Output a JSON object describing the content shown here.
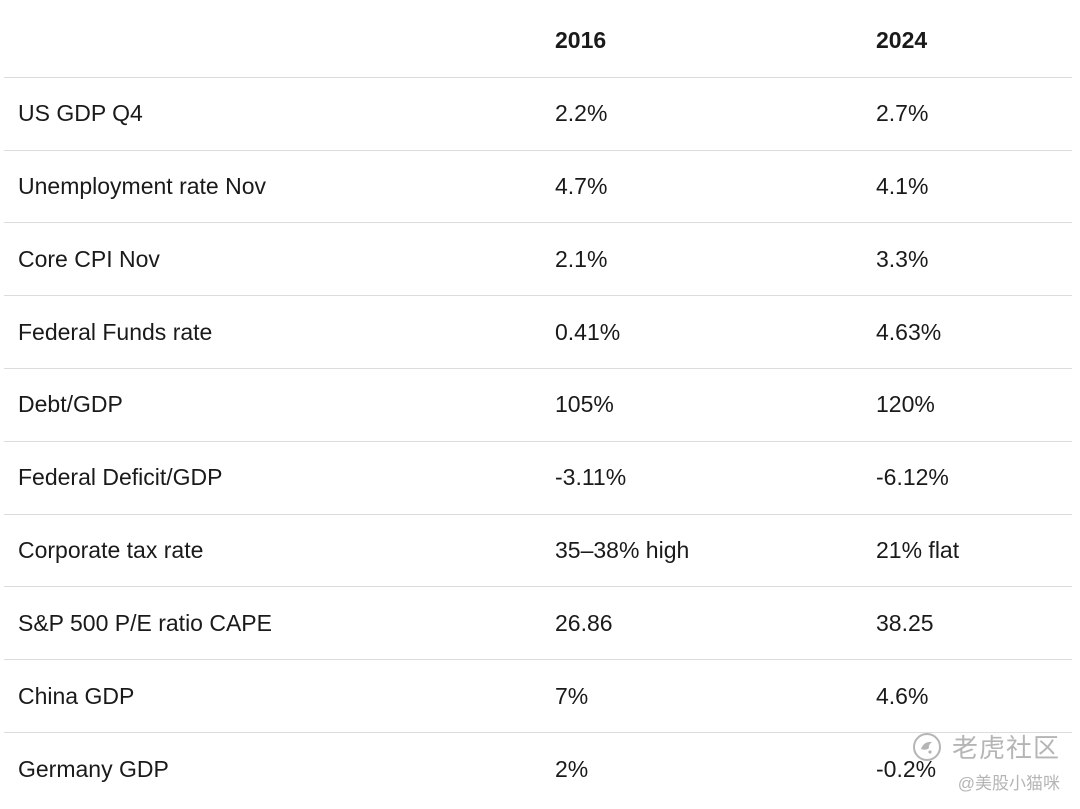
{
  "table": {
    "columns": [
      "",
      "2016",
      "2024"
    ],
    "rows": [
      {
        "label": "US GDP Q4",
        "y2016": "2.2%",
        "y2024": "2.7%"
      },
      {
        "label": "Unemployment rate Nov",
        "y2016": "4.7%",
        "y2024": "4.1%"
      },
      {
        "label": "Core CPI Nov",
        "y2016": "2.1%",
        "y2024": "3.3%"
      },
      {
        "label": "Federal Funds rate",
        "y2016": "0.41%",
        "y2024": "4.63%"
      },
      {
        "label": "Debt/GDP",
        "y2016": "105%",
        "y2024": "120%"
      },
      {
        "label": "Federal Deficit/GDP",
        "y2016": "-3.11%",
        "y2024": "-6.12%"
      },
      {
        "label": "Corporate tax rate",
        "y2016": "35–38% high",
        "y2024": "21% flat"
      },
      {
        "label": "S&P 500 P/E ratio CAPE",
        "y2016": "26.86",
        "y2024": "38.25"
      },
      {
        "label": "China GDP",
        "y2016": "7%",
        "y2024": "4.6%"
      },
      {
        "label": "Germany GDP",
        "y2016": "2%",
        "y2024": "-0.2%"
      }
    ]
  },
  "watermark": {
    "brand": "老虎社区",
    "handle": "@美股小猫咪",
    "logo_icon": "tiger-logo-icon"
  }
}
